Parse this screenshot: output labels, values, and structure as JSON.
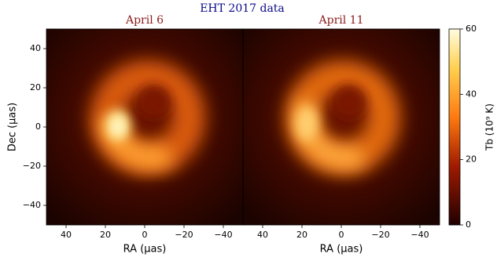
{
  "title": "EHT 2017 data",
  "chart_data": [
    {
      "type": "image",
      "title": "April 6",
      "xlabel": "RA (μas)",
      "ylabel": "Dec (μas)",
      "xlim": [
        50,
        -50
      ],
      "ylim": [
        -50,
        50
      ],
      "xticks": [
        40,
        20,
        0,
        {
          "value": -20,
          "label": "−20"
        },
        {
          "value": -40,
          "label": "−40"
        }
      ],
      "yticks": [
        {
          "value": -40,
          "label": "−40"
        },
        {
          "value": -20,
          "label": "−20"
        },
        0,
        20,
        40
      ]
    },
    {
      "type": "image",
      "title": "April 11",
      "xlabel": "RA (μas)",
      "xlim": [
        50,
        -50
      ],
      "ylim": [
        -50,
        50
      ],
      "xticks": [
        40,
        20,
        0,
        {
          "value": -20,
          "label": "−20"
        },
        {
          "value": -40,
          "label": "−40"
        }
      ]
    }
  ],
  "colorbar": {
    "label": "Tb (10⁹ K)",
    "lim": [
      0,
      60
    ],
    "ticks": [
      0,
      20,
      40,
      60
    ]
  }
}
